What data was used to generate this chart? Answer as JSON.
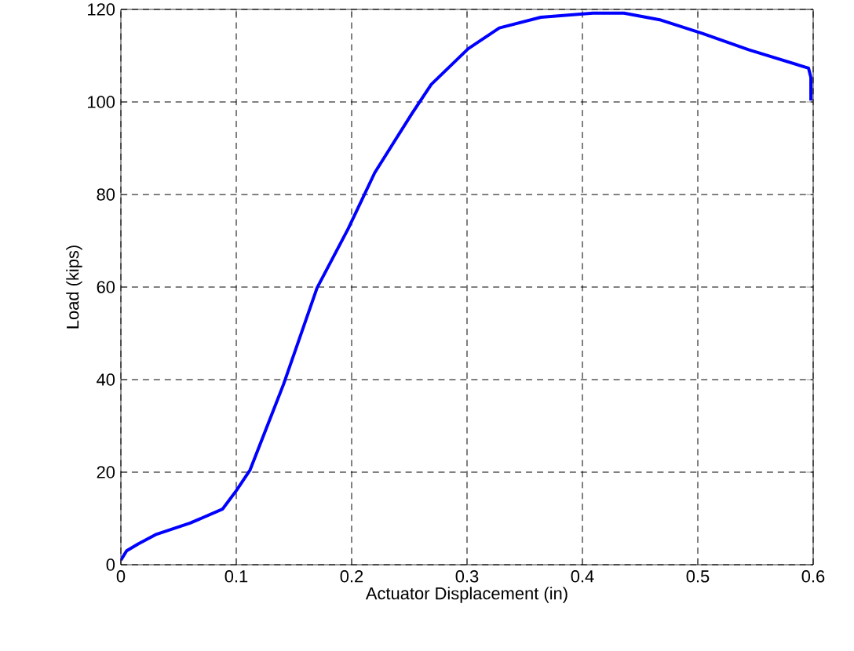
{
  "chart_data": {
    "type": "line",
    "xlabel": "Actuator Displacement (in)",
    "ylabel": "Load (kips)",
    "xlim": [
      0,
      0.6
    ],
    "ylim": [
      0,
      120
    ],
    "xticks": [
      0,
      0.1,
      0.2,
      0.3,
      0.4,
      0.5,
      0.6
    ],
    "yticks": [
      0,
      20,
      40,
      60,
      80,
      100,
      120
    ],
    "grid": true,
    "line_style": "solid",
    "marker": "none",
    "series": [
      {
        "color": "#0000ff",
        "x": [
          0,
          0.005,
          0.015,
          0.03,
          0.06,
          0.088,
          0.1,
          0.112,
          0.141,
          0.17,
          0.197,
          0.22,
          0.252,
          0.269,
          0.301,
          0.328,
          0.364,
          0.409,
          0.436,
          0.468,
          0.504,
          0.544,
          0.596,
          0.598,
          0.598
        ],
        "values": [
          1,
          3,
          4.5,
          6.5,
          9,
          12,
          16,
          20.5,
          39,
          59.8,
          72.6,
          84.7,
          97.4,
          103.8,
          111.5,
          116,
          118.3,
          119.2,
          119.2,
          117.7,
          114.8,
          111.3,
          107.3,
          105.3,
          100.3
        ]
      }
    ]
  }
}
